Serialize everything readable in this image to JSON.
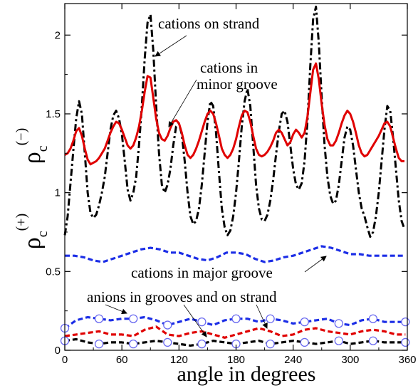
{
  "chart_data": {
    "type": "line",
    "xlabel": "angle in degrees",
    "ylabel_top": {
      "base": "ρ",
      "sub": "c",
      "sup": "(−)"
    },
    "ylabel_bottom": {
      "base": "ρ",
      "sub": "c",
      "sup": "(+)"
    },
    "xlim": [
      0,
      360
    ],
    "ylim": [
      0,
      2.2
    ],
    "x_ticks": [
      "0",
      "60",
      "120",
      "180",
      "240",
      "300",
      "360"
    ],
    "y_ticks": [
      "0",
      "0.5",
      "1",
      "1.5",
      "2"
    ],
    "grid": false,
    "colors": {
      "black": "#000000",
      "red": "#e00000",
      "blue": "#1c2ee6",
      "marker_fill": "#ffffff",
      "marker_stroke": "#6a6af0"
    },
    "annotations": [
      {
        "text": "cations on strand",
        "points_to": [
          88,
          1.9
        ]
      },
      {
        "text": "cations in",
        "points_to": [
          106,
          1.38
        ]
      },
      {
        "text": "minor groove",
        "points_to": null
      },
      {
        "text": "cations in major groove",
        "points_to": [
          270,
          0.66
        ]
      },
      {
        "text": "anions in grooves and on strand",
        "points_to": [
          [
            55,
            0.22
          ],
          [
            148,
            0.08
          ],
          [
            210,
            0.13
          ]
        ]
      }
    ],
    "series": [
      {
        "color": "black",
        "style": "dash-dot",
        "x": [
          0,
          3,
          6,
          9,
          12,
          15,
          18,
          21,
          24,
          27,
          30,
          33,
          36,
          39,
          42,
          45,
          48,
          51,
          54,
          57,
          60,
          63,
          66,
          69,
          72,
          75,
          78,
          81,
          84,
          87,
          90,
          93,
          96,
          99,
          102,
          105,
          108,
          111,
          114,
          117,
          120,
          123,
          126,
          129,
          132,
          135,
          138,
          141,
          144,
          147,
          150,
          153,
          156,
          159,
          162,
          165,
          168,
          171,
          174,
          177,
          180,
          183,
          186,
          189,
          192,
          195,
          198,
          201,
          204,
          207,
          210,
          213,
          216,
          219,
          222,
          225,
          228,
          231,
          234,
          237,
          240,
          243,
          246,
          249,
          252,
          255,
          258,
          261,
          264,
          267,
          270,
          273,
          276,
          279,
          282,
          285,
          288,
          291,
          294,
          297,
          300,
          303,
          306,
          309,
          312,
          315,
          318,
          321,
          324,
          327,
          330,
          333,
          336,
          339,
          342,
          345,
          348,
          351,
          354,
          357
        ],
        "y": [
          0.73,
          0.85,
          1.06,
          1.27,
          1.47,
          1.58,
          1.5,
          1.25,
          1.0,
          0.87,
          0.84,
          0.86,
          0.92,
          1.0,
          1.1,
          1.25,
          1.4,
          1.49,
          1.52,
          1.47,
          1.37,
          1.2,
          1.02,
          0.95,
          1.0,
          1.1,
          1.3,
          1.55,
          1.85,
          2.08,
          2.13,
          1.9,
          1.55,
          1.25,
          1.05,
          1.0,
          1.05,
          1.15,
          1.3,
          1.42,
          1.44,
          1.37,
          1.2,
          1.0,
          0.85,
          0.8,
          0.82,
          0.9,
          1.05,
          1.25,
          1.45,
          1.58,
          1.55,
          1.38,
          1.13,
          0.9,
          0.78,
          0.73,
          0.76,
          0.85,
          1.0,
          1.2,
          1.42,
          1.58,
          1.66,
          1.55,
          1.3,
          1.05,
          0.9,
          0.83,
          0.82,
          0.86,
          0.95,
          1.08,
          1.24,
          1.39,
          1.5,
          1.52,
          1.45,
          1.3,
          1.15,
          1.05,
          1.02,
          1.06,
          1.2,
          1.45,
          1.8,
          2.1,
          2.18,
          1.95,
          1.6,
          1.3,
          1.1,
          0.98,
          0.93,
          0.95,
          1.05,
          1.2,
          1.35,
          1.42,
          1.4,
          1.3,
          1.15,
          1.0,
          0.9,
          0.85,
          0.78,
          0.72,
          0.75,
          0.85,
          1.0,
          1.2,
          1.4,
          1.55,
          1.52,
          1.35,
          1.15,
          0.95,
          0.82,
          0.77
        ]
      },
      {
        "color": "red",
        "style": "solid",
        "x": [
          0,
          3,
          6,
          9,
          12,
          15,
          18,
          21,
          24,
          27,
          30,
          33,
          36,
          39,
          42,
          45,
          48,
          51,
          54,
          57,
          60,
          63,
          66,
          69,
          72,
          75,
          78,
          81,
          84,
          87,
          90,
          93,
          96,
          99,
          102,
          105,
          108,
          111,
          114,
          117,
          120,
          123,
          126,
          129,
          132,
          135,
          138,
          141,
          144,
          147,
          150,
          153,
          156,
          159,
          162,
          165,
          168,
          171,
          174,
          177,
          180,
          183,
          186,
          189,
          192,
          195,
          198,
          201,
          204,
          207,
          210,
          213,
          216,
          219,
          222,
          225,
          228,
          231,
          234,
          237,
          240,
          243,
          246,
          249,
          252,
          255,
          258,
          261,
          264,
          267,
          270,
          273,
          276,
          279,
          282,
          285,
          288,
          291,
          294,
          297,
          300,
          303,
          306,
          309,
          312,
          315,
          318,
          321,
          324,
          327,
          330,
          333,
          336,
          339,
          342,
          345,
          348,
          351,
          354,
          357
        ],
        "y": [
          1.24,
          1.25,
          1.28,
          1.33,
          1.39,
          1.41,
          1.36,
          1.28,
          1.21,
          1.18,
          1.19,
          1.2,
          1.22,
          1.25,
          1.28,
          1.33,
          1.38,
          1.42,
          1.45,
          1.44,
          1.4,
          1.35,
          1.3,
          1.28,
          1.3,
          1.35,
          1.42,
          1.52,
          1.64,
          1.74,
          1.73,
          1.6,
          1.47,
          1.38,
          1.34,
          1.33,
          1.36,
          1.41,
          1.45,
          1.46,
          1.44,
          1.38,
          1.3,
          1.24,
          1.22,
          1.24,
          1.28,
          1.33,
          1.39,
          1.45,
          1.5,
          1.52,
          1.5,
          1.44,
          1.36,
          1.28,
          1.24,
          1.22,
          1.24,
          1.28,
          1.34,
          1.42,
          1.49,
          1.52,
          1.51,
          1.45,
          1.36,
          1.28,
          1.24,
          1.23,
          1.24,
          1.26,
          1.29,
          1.33,
          1.38,
          1.4,
          1.38,
          1.34,
          1.3,
          1.32,
          1.37,
          1.4,
          1.38,
          1.35,
          1.38,
          1.48,
          1.63,
          1.78,
          1.82,
          1.72,
          1.56,
          1.43,
          1.34,
          1.3,
          1.3,
          1.33,
          1.38,
          1.44,
          1.49,
          1.52,
          1.5,
          1.45,
          1.38,
          1.3,
          1.25,
          1.23,
          1.24,
          1.27,
          1.3,
          1.33,
          1.36,
          1.4,
          1.44,
          1.45,
          1.42,
          1.35,
          1.28,
          1.22,
          1.2,
          1.2
        ]
      },
      {
        "color": "blue",
        "style": "dashed",
        "x": [
          0,
          10,
          20,
          30,
          40,
          50,
          60,
          70,
          80,
          90,
          100,
          110,
          120,
          130,
          140,
          150,
          160,
          170,
          180,
          190,
          200,
          210,
          220,
          230,
          240,
          250,
          260,
          270,
          280,
          290,
          300,
          310,
          320,
          330,
          340,
          350,
          358
        ],
        "y": [
          0.6,
          0.6,
          0.59,
          0.57,
          0.56,
          0.58,
          0.6,
          0.62,
          0.64,
          0.65,
          0.64,
          0.62,
          0.62,
          0.6,
          0.58,
          0.57,
          0.59,
          0.62,
          0.62,
          0.61,
          0.58,
          0.56,
          0.57,
          0.59,
          0.6,
          0.62,
          0.64,
          0.66,
          0.65,
          0.63,
          0.61,
          0.61,
          0.6,
          0.6,
          0.6,
          0.6,
          0.6
        ]
      },
      {
        "color": "blue",
        "style": "dashed",
        "markers": "circle",
        "x": [
          0,
          12,
          24,
          36,
          48,
          60,
          72,
          84,
          96,
          108,
          120,
          132,
          144,
          156,
          168,
          180,
          192,
          204,
          216,
          228,
          240,
          252,
          264,
          276,
          288,
          300,
          312,
          324,
          336,
          348,
          358
        ],
        "y": [
          0.14,
          0.19,
          0.21,
          0.2,
          0.19,
          0.2,
          0.2,
          0.21,
          0.19,
          0.16,
          0.18,
          0.2,
          0.18,
          0.16,
          0.19,
          0.2,
          0.2,
          0.18,
          0.2,
          0.19,
          0.17,
          0.18,
          0.19,
          0.2,
          0.17,
          0.16,
          0.19,
          0.2,
          0.18,
          0.18,
          0.18
        ]
      },
      {
        "color": "red",
        "style": "dashed",
        "x": [
          0,
          12,
          24,
          36,
          48,
          60,
          72,
          84,
          96,
          108,
          120,
          132,
          144,
          156,
          168,
          180,
          192,
          204,
          216,
          228,
          240,
          252,
          264,
          276,
          288,
          300,
          312,
          324,
          336,
          348,
          358
        ],
        "y": [
          0.09,
          0.1,
          0.11,
          0.12,
          0.1,
          0.1,
          0.09,
          0.13,
          0.15,
          0.1,
          0.09,
          0.11,
          0.12,
          0.1,
          0.08,
          0.1,
          0.12,
          0.14,
          0.12,
          0.09,
          0.1,
          0.13,
          0.14,
          0.12,
          0.11,
          0.1,
          0.12,
          0.13,
          0.12,
          0.1,
          0.1
        ]
      },
      {
        "color": "black",
        "style": "dashed",
        "markers": "circle",
        "x": [
          0,
          12,
          24,
          36,
          48,
          60,
          72,
          84,
          96,
          108,
          120,
          132,
          144,
          156,
          168,
          180,
          192,
          204,
          216,
          228,
          240,
          252,
          264,
          276,
          288,
          300,
          312,
          324,
          336,
          348,
          358
        ],
        "y": [
          0.06,
          0.07,
          0.05,
          0.04,
          0.05,
          0.05,
          0.04,
          0.05,
          0.06,
          0.05,
          0.04,
          0.03,
          0.04,
          0.06,
          0.05,
          0.04,
          0.05,
          0.06,
          0.04,
          0.05,
          0.06,
          0.05,
          0.04,
          0.05,
          0.06,
          0.04,
          0.05,
          0.06,
          0.05,
          0.05,
          0.05
        ]
      }
    ]
  }
}
